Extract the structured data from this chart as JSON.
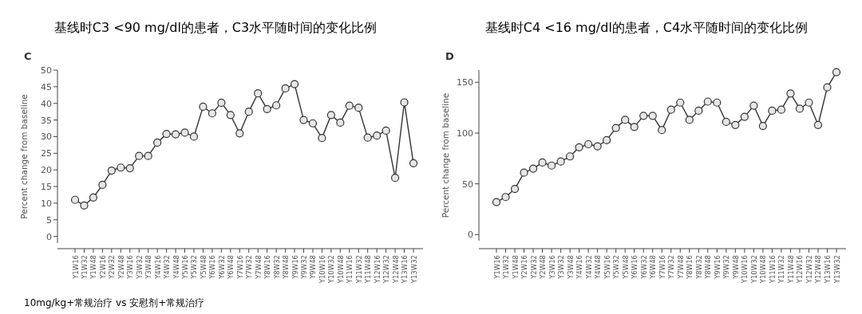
{
  "chart_data": [
    {
      "type": "line",
      "title": "基线时C3 <90 mg/dl的患者，C3水平随时间的变化比例",
      "ylabel": "Percent change from baseline",
      "categories": [
        "Y1W16",
        "Y1W32",
        "Y1W48",
        "Y2W16",
        "Y2W32",
        "Y2W48",
        "Y3W16",
        "Y3W32",
        "Y3W48",
        "Y4W16",
        "Y4W32",
        "Y4W48",
        "Y5W16",
        "Y5W32",
        "Y5W48",
        "Y6W16",
        "Y6W32",
        "Y6W48",
        "Y7W16",
        "Y7W32",
        "Y7W48",
        "Y8W16",
        "Y8W32",
        "Y8W48",
        "Y9W16",
        "Y9W32",
        "Y9W48",
        "Y10W16",
        "Y10W32",
        "Y10W48",
        "Y11W16",
        "Y11W32",
        "Y11W48",
        "Y12W16",
        "Y12W32",
        "Y12W48",
        "Y13W16",
        "Y13W32"
      ],
      "values": [
        11,
        9.3,
        11.7,
        15.5,
        19.8,
        20.7,
        20.5,
        24.2,
        24.2,
        28.2,
        30.8,
        30.7,
        31.2,
        30,
        39,
        37,
        40.2,
        36.5,
        31,
        37.5,
        43,
        38.3,
        39.4,
        44.5,
        45.8,
        35,
        34,
        29.6,
        36.5,
        34.2,
        39.3,
        38.7,
        29.7,
        30.3,
        31.8,
        17.6,
        40.3,
        22
      ],
      "color": "#333333",
      "marker": "circle",
      "ylim": [
        -2,
        50
      ],
      "yticks": [
        0,
        5,
        10,
        15,
        20,
        25,
        30,
        35,
        40,
        45,
        50
      ],
      "annotations": [
        "C",
        "10mg/kg+常规治疗 vs 安慰剂+常规治疗"
      ]
    },
    {
      "type": "line",
      "title": "基线时C4 <16 mg/dl的患者，C4水平随时间的变化比例",
      "ylabel": "Percent change from baseline",
      "categories": [
        "Y1W16",
        "Y1W32",
        "Y1W48",
        "Y2W16",
        "Y2W32",
        "Y2W48",
        "Y3W16",
        "Y3W32",
        "Y3W48",
        "Y4W16",
        "Y4W32",
        "Y4W48",
        "Y5W16",
        "Y5W32",
        "Y5W48",
        "Y6W16",
        "Y6W32",
        "Y6W48",
        "Y7W16",
        "Y7W32",
        "Y7W48",
        "Y8W16",
        "Y8W32",
        "Y8W48",
        "Y9W16",
        "Y9W32",
        "Y9W48",
        "Y10W16",
        "Y10W32",
        "Y10W48",
        "Y11W16",
        "Y11W32",
        "Y11W48",
        "Y12W16",
        "Y12W32",
        "Y12W48",
        "Y13W16",
        "Y13W32"
      ],
      "values": [
        32,
        37,
        45,
        61,
        65,
        71,
        68,
        72,
        77,
        86,
        89,
        87,
        93,
        105,
        113,
        106,
        117,
        117,
        103,
        123,
        130,
        113,
        122,
        131,
        130,
        111,
        108,
        116,
        127,
        107,
        122,
        123,
        139,
        124,
        130,
        108,
        145,
        160
      ],
      "color": "#333333",
      "marker": "circle",
      "ylim": [
        -6,
        162
      ],
      "yticks": [
        0,
        50,
        100,
        150
      ],
      "annotations": [
        "D"
      ]
    }
  ]
}
